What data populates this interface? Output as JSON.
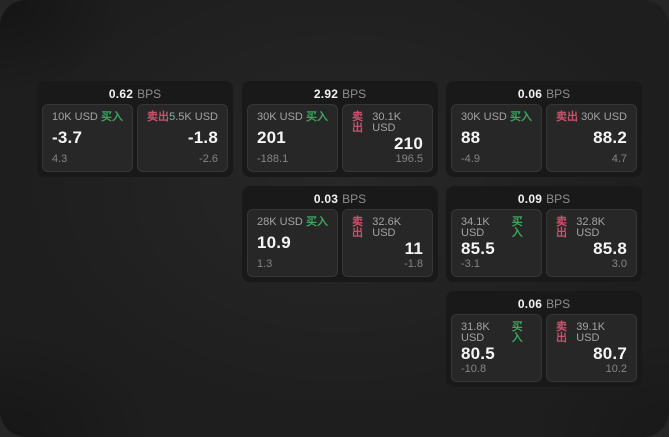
{
  "colors": {
    "backdrop": "#262626",
    "window_bg": "#1e1e1e",
    "card_bg": "#191919",
    "panel_bg": "#272727",
    "buy_green": "#3da35e",
    "sell_red": "#c9516d",
    "value_white": "#f5f5f5",
    "label_gray": "#a3a3a3"
  },
  "labels": {
    "buy": "买入",
    "sell": "卖出",
    "bps": "BPS"
  },
  "cards": [
    {
      "bps": "0.62",
      "col": 1,
      "row": 1,
      "buy": {
        "amount": "10K USD",
        "price": "-3.7",
        "delta": "4.3"
      },
      "sell": {
        "amount": "5.5K USD",
        "price": "-1.8",
        "delta": "-2.6"
      }
    },
    {
      "bps": "2.92",
      "col": 2,
      "row": 1,
      "buy": {
        "amount": "30K USD",
        "price": "201",
        "delta": "-188.1"
      },
      "sell": {
        "amount": "30.1K USD",
        "price": "210",
        "delta": "196.5"
      }
    },
    {
      "bps": "0.06",
      "col": 3,
      "row": 1,
      "buy": {
        "amount": "30K USD",
        "price": "88",
        "delta": "-4.9"
      },
      "sell": {
        "amount": "30K USD",
        "price": "88.2",
        "delta": "4.7"
      }
    },
    {
      "bps": "0.03",
      "col": 2,
      "row": 2,
      "buy": {
        "amount": "28K USD",
        "price": "10.9",
        "delta": "1.3"
      },
      "sell": {
        "amount": "32.6K USD",
        "price": "11",
        "delta": "-1.8"
      }
    },
    {
      "bps": "0.09",
      "col": 3,
      "row": 2,
      "buy": {
        "amount": "34.1K USD",
        "price": "85.5",
        "delta": "-3.1"
      },
      "sell": {
        "amount": "32.8K USD",
        "price": "85.8",
        "delta": "3.0"
      }
    },
    {
      "bps": "0.06",
      "col": 3,
      "row": 3,
      "buy": {
        "amount": "31.8K USD",
        "price": "80.5",
        "delta": "-10.8"
      },
      "sell": {
        "amount": "39.1K USD",
        "price": "80.7",
        "delta": "10.2"
      }
    }
  ]
}
